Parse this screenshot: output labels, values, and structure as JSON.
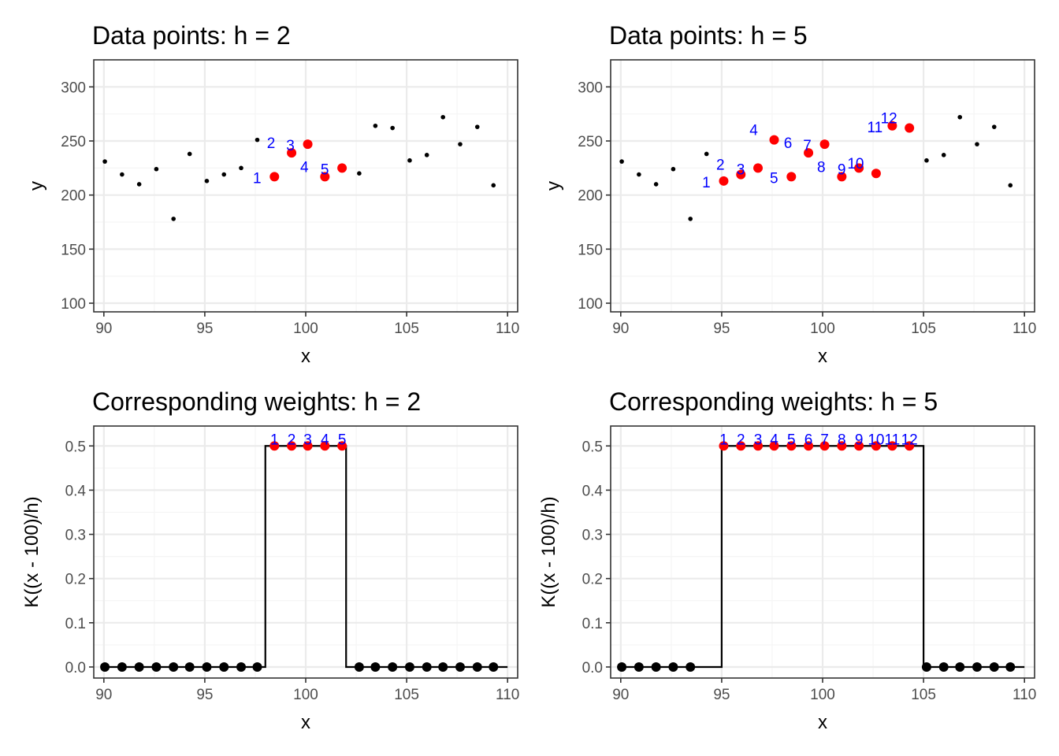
{
  "colors": {
    "background": "#ffffff",
    "panel_border": "#333333",
    "grid_major": "#ebebeb",
    "grid_minor": "#f5f5f5",
    "point": "#000000",
    "highlight": "#ff0000",
    "label": "#0000ff",
    "line": "#000000"
  },
  "chart_data": [
    {
      "type": "scatter",
      "title": "Data points: h = 2",
      "xlabel": "x",
      "ylabel": "y",
      "xlim": [
        89.5,
        110.5
      ],
      "ylim": [
        92,
        325
      ],
      "xticks": [
        90,
        95,
        100,
        105,
        110
      ],
      "yticks": [
        100,
        150,
        200,
        250,
        300
      ],
      "grid": true,
      "legend": "none",
      "series": [
        {
          "x": [
            90.05,
            90.9,
            91.75,
            92.6,
            93.45,
            94.25,
            95.1,
            95.95,
            96.8,
            97.6,
            98.45,
            99.3,
            100.1,
            100.95,
            101.8,
            102.65,
            103.45,
            104.3,
            105.15,
            106.0,
            106.8,
            107.65,
            108.5,
            109.3
          ],
          "y": [
            231,
            219,
            210,
            224,
            178,
            238,
            213,
            219,
            225,
            251,
            217,
            239,
            247,
            217,
            225,
            220,
            264,
            262,
            232,
            237,
            272,
            247,
            263,
            209
          ]
        },
        {
          "x": [
            98.45,
            99.3,
            100.1,
            100.95,
            101.8
          ],
          "y": [
            217,
            239,
            247,
            217,
            225
          ],
          "labels": [
            "1",
            "2",
            "3",
            "4",
            "5"
          ]
        }
      ]
    },
    {
      "type": "scatter",
      "title": "Data points: h = 5",
      "xlabel": "x",
      "ylabel": "y",
      "xlim": [
        89.5,
        110.5
      ],
      "ylim": [
        92,
        325
      ],
      "xticks": [
        90,
        95,
        100,
        105,
        110
      ],
      "yticks": [
        100,
        150,
        200,
        250,
        300
      ],
      "grid": true,
      "legend": "none",
      "series": [
        {
          "x": [
            90.05,
            90.9,
            91.75,
            92.6,
            93.45,
            94.25,
            95.1,
            95.95,
            96.8,
            97.6,
            98.45,
            99.3,
            100.1,
            100.95,
            101.8,
            102.65,
            103.45,
            104.3,
            105.15,
            106.0,
            106.8,
            107.65,
            108.5,
            109.3
          ],
          "y": [
            231,
            219,
            210,
            224,
            178,
            238,
            213,
            219,
            225,
            251,
            217,
            239,
            247,
            217,
            225,
            220,
            264,
            262,
            232,
            237,
            272,
            247,
            263,
            209
          ]
        },
        {
          "x": [
            95.1,
            95.95,
            96.8,
            97.6,
            98.45,
            99.3,
            100.1,
            100.95,
            101.8,
            102.65,
            103.45,
            104.3
          ],
          "y": [
            213,
            219,
            225,
            251,
            217,
            239,
            247,
            217,
            225,
            220,
            264,
            262
          ],
          "labels": [
            "1",
            "2",
            "3",
            "4",
            "5",
            "6",
            "7",
            "8",
            "9",
            "10",
            "11",
            "12"
          ]
        }
      ]
    },
    {
      "type": "line",
      "title": "Corresponding weights: h = 2",
      "xlabel": "x",
      "ylabel": "K((x - 100)/h)",
      "xlim": [
        89.5,
        110.5
      ],
      "ylim": [
        -0.025,
        0.545
      ],
      "xticks": [
        90,
        95,
        100,
        105,
        110
      ],
      "yticks": [
        0.0,
        0.1,
        0.2,
        0.3,
        0.4,
        0.5
      ],
      "grid": true,
      "legend": "none",
      "series": [
        {
          "x": [
            90,
            98,
            98,
            102,
            102,
            110
          ],
          "y": [
            0,
            0,
            0.5,
            0.5,
            0,
            0
          ]
        },
        {
          "x": [
            90.05,
            90.9,
            91.75,
            92.6,
            93.45,
            94.25,
            95.1,
            95.95,
            96.8,
            97.6,
            102.65,
            103.45,
            104.3,
            105.15,
            106.0,
            106.8,
            107.65,
            108.5,
            109.3
          ],
          "y": [
            0,
            0,
            0,
            0,
            0,
            0,
            0,
            0,
            0,
            0,
            0,
            0,
            0,
            0,
            0,
            0,
            0,
            0,
            0
          ]
        },
        {
          "x": [
            98.45,
            99.3,
            100.1,
            100.95,
            101.8
          ],
          "y": [
            0.5,
            0.5,
            0.5,
            0.5,
            0.5
          ],
          "labels": [
            "1",
            "2",
            "3",
            "4",
            "5"
          ]
        }
      ]
    },
    {
      "type": "line",
      "title": "Corresponding weights: h = 5",
      "xlabel": "x",
      "ylabel": "K((x - 100)/h)",
      "xlim": [
        89.5,
        110.5
      ],
      "ylim": [
        -0.025,
        0.545
      ],
      "xticks": [
        90,
        95,
        100,
        105,
        110
      ],
      "yticks": [
        0.0,
        0.1,
        0.2,
        0.3,
        0.4,
        0.5
      ],
      "grid": true,
      "legend": "none",
      "series": [
        {
          "x": [
            90,
            95,
            95,
            105,
            105,
            110
          ],
          "y": [
            0,
            0,
            0.5,
            0.5,
            0,
            0
          ]
        },
        {
          "x": [
            90.05,
            90.9,
            91.75,
            92.6,
            93.45,
            105.15,
            106.0,
            106.8,
            107.65,
            108.5,
            109.3
          ],
          "y": [
            0,
            0,
            0,
            0,
            0,
            0,
            0,
            0,
            0,
            0,
            0
          ]
        },
        {
          "x": [
            95.1,
            95.95,
            96.8,
            97.6,
            98.45,
            99.3,
            100.1,
            100.95,
            101.8,
            102.65,
            103.45,
            104.3
          ],
          "y": [
            0.5,
            0.5,
            0.5,
            0.5,
            0.5,
            0.5,
            0.5,
            0.5,
            0.5,
            0.5,
            0.5,
            0.5
          ],
          "labels": [
            "1",
            "2",
            "3",
            "4",
            "5",
            "6",
            "7",
            "8",
            "9",
            "10",
            "11",
            "12"
          ]
        }
      ]
    }
  ]
}
